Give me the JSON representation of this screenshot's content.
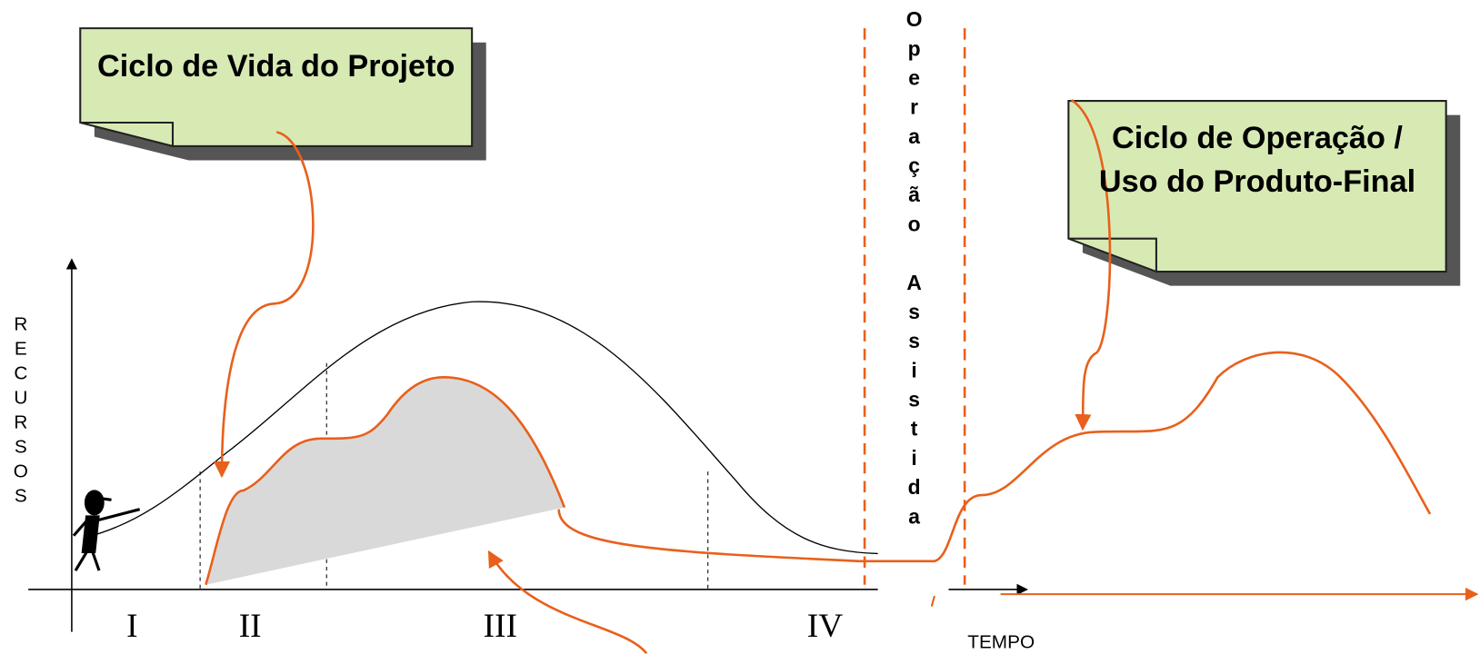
{
  "callouts": [
    {
      "label": "Ciclo de Vida do Projeto"
    },
    {
      "label": "Ciclo de Operação / Uso do Produto-Final"
    }
  ],
  "y_axis_label": "RECURSOS",
  "x_axis_label": "TEMPO",
  "phases": [
    "I",
    "II",
    "III",
    "IV"
  ],
  "divider_label": "Operação Assistida"
}
